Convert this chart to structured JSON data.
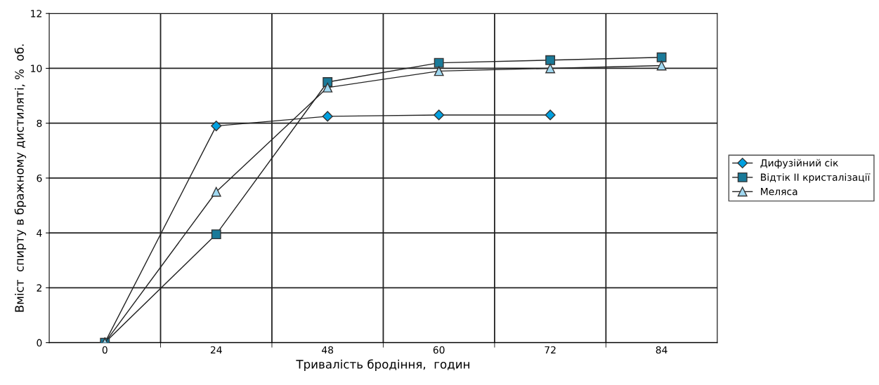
{
  "chart_data": {
    "type": "line",
    "xlabel": "Тривалість бродіння,  годин",
    "ylabel": "Вміст  спирту в бражному дистиляті, %  об.",
    "categories": [
      "0",
      "24",
      "48",
      "60",
      "72",
      "84"
    ],
    "ylim": [
      0,
      12
    ],
    "yticks": [
      0,
      2,
      4,
      6,
      8,
      10,
      12
    ],
    "grid": true,
    "legend": "right",
    "line_style": "solid",
    "series": [
      {
        "name": "Дифузійний сік",
        "color": "#00a0e0",
        "marker": "diamond",
        "values": [
          0,
          7.9,
          8.25,
          8.3,
          8.3,
          null
        ]
      },
      {
        "name": "Відтік II кристалізації",
        "color": "#1a7a99",
        "marker": "square",
        "values": [
          0,
          3.95,
          9.5,
          10.2,
          10.3,
          10.4
        ]
      },
      {
        "name": "Меляса",
        "color": "#a0d8f0",
        "marker": "triangle",
        "values": [
          0,
          5.5,
          9.3,
          9.9,
          10.0,
          10.1
        ]
      }
    ]
  }
}
